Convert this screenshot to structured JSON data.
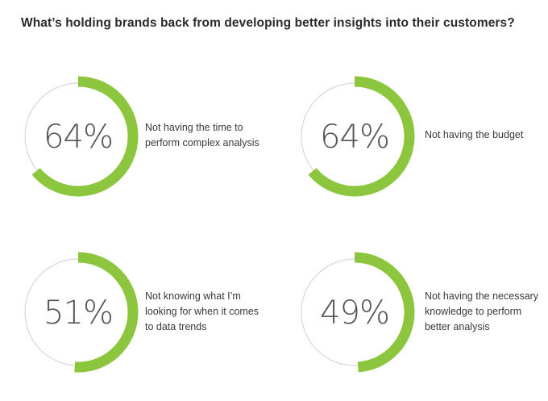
{
  "title": "What’s holding brands back from developing better insights into their customers?",
  "colors": {
    "accent": "#8cc63f",
    "track": "#d0d0d0",
    "text": "#3a3a3a"
  },
  "chart_data": {
    "type": "donut",
    "title": "What’s holding brands back from developing better insights into their customers?",
    "items": [
      {
        "value": 64,
        "value_label": "64%",
        "label_lines": [
          "Not having the time to",
          "perform complex analysis"
        ]
      },
      {
        "value": 64,
        "value_label": "64%",
        "label_lines": [
          "Not having the budget"
        ]
      },
      {
        "value": 51,
        "value_label": "51%",
        "label_lines": [
          "Not knowing what I’m",
          "looking for when it comes",
          "to data trends"
        ]
      },
      {
        "value": 49,
        "value_label": "49%",
        "label_lines": [
          "Not having the necessary",
          "knowledge to perform",
          "better analysis"
        ]
      }
    ]
  }
}
